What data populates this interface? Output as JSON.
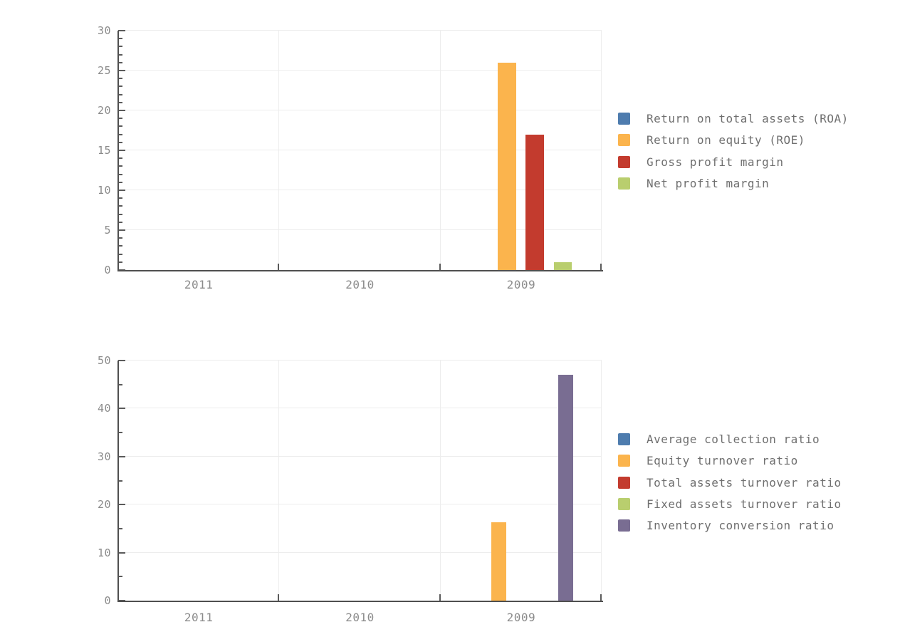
{
  "style": {
    "background": "#ffffff",
    "grid_color": "#ededed",
    "axis_color": "#4f4f4f",
    "tick_color": "#5a5a5a",
    "tick_label_color": "#8b8b8b",
    "legend_text_color": "#6f6f6f"
  },
  "chart_data": [
    {
      "id": "profitability-ratios",
      "type": "bar",
      "title": "",
      "xlabel": "",
      "ylabel": "",
      "grid": true,
      "legend_position": "right",
      "categories": [
        "2011",
        "2010",
        "2009"
      ],
      "ylim": [
        0,
        30
      ],
      "ytick_step": 5,
      "minor_tick_step": 1,
      "yticks": [
        0,
        5,
        10,
        15,
        20,
        25,
        30
      ],
      "series": [
        {
          "name": "Return on total assets (ROA)",
          "color": "#4e7cae",
          "values": [
            0,
            0,
            0
          ]
        },
        {
          "name": "Return on equity (ROE)",
          "color": "#fbb44d",
          "values": [
            0,
            0,
            26
          ]
        },
        {
          "name": "Gross profit margin",
          "color": "#c33b2e",
          "values": [
            0,
            0,
            17
          ]
        },
        {
          "name": "Net profit margin",
          "color": "#b9ce6e",
          "values": [
            0,
            0,
            1
          ]
        }
      ]
    },
    {
      "id": "turnover-ratios",
      "type": "bar",
      "title": "",
      "xlabel": "",
      "ylabel": "",
      "grid": true,
      "legend_position": "right",
      "categories": [
        "2011",
        "2010",
        "2009"
      ],
      "ylim": [
        0,
        50
      ],
      "ytick_step": 10,
      "minor_tick_step": 5,
      "yticks": [
        0,
        10,
        20,
        30,
        40,
        50
      ],
      "series": [
        {
          "name": "Average collection ratio",
          "color": "#4e7cae",
          "values": [
            0,
            0,
            0
          ]
        },
        {
          "name": "Equity turnover ratio",
          "color": "#fbb44d",
          "values": [
            0,
            0,
            16.3
          ]
        },
        {
          "name": "Total assets turnover ratio",
          "color": "#c33b2e",
          "values": [
            0,
            0,
            0
          ]
        },
        {
          "name": "Fixed assets turnover ratio",
          "color": "#b9ce6e",
          "values": [
            0,
            0,
            0
          ]
        },
        {
          "name": "Inventory conversion ratio",
          "color": "#796d92",
          "values": [
            0,
            0,
            47
          ]
        }
      ]
    }
  ]
}
